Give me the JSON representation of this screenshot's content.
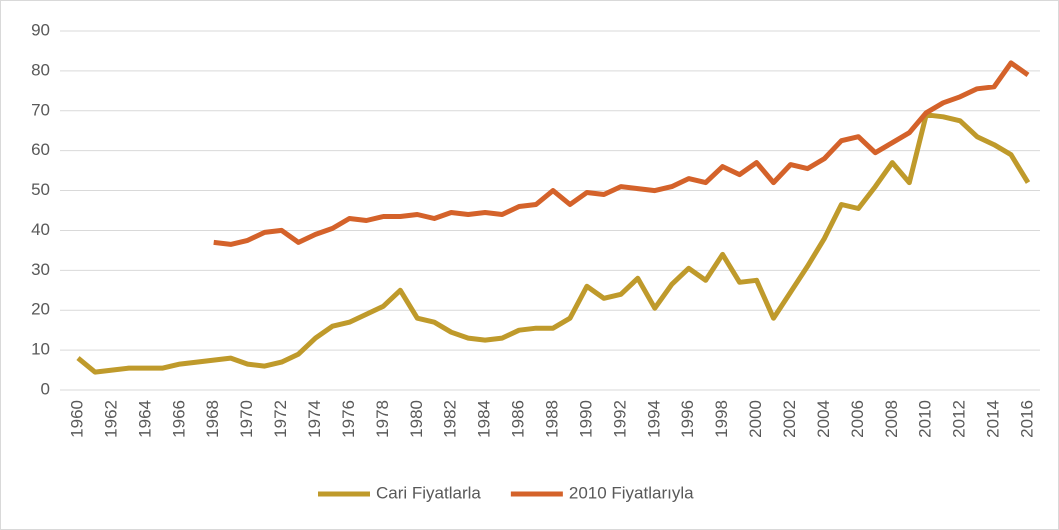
{
  "chart_data": {
    "type": "line",
    "categories": [
      "1960",
      null,
      "1962",
      null,
      "1964",
      null,
      "1966",
      null,
      "1968",
      null,
      "1970",
      null,
      "1972",
      null,
      "1974",
      null,
      "1976",
      null,
      "1978",
      null,
      "1980",
      null,
      "1982",
      null,
      "1984",
      null,
      "1986",
      null,
      "1988",
      null,
      "1990",
      null,
      "1992",
      null,
      "1994",
      null,
      "1996",
      null,
      "1998",
      null,
      "2000",
      null,
      "2002",
      null,
      "2004",
      null,
      "2006",
      null,
      "2008",
      null,
      "2010",
      null,
      "2012",
      null,
      "2014",
      null,
      "2016"
    ],
    "series": [
      {
        "name": "Cari Fiyatlarla",
        "color": "#bf9a2b",
        "values": [
          8,
          4.5,
          5,
          5.5,
          5.5,
          5.5,
          6.5,
          7,
          7.5,
          8,
          6.5,
          6,
          7,
          9,
          13,
          16,
          17,
          19,
          21,
          25,
          18,
          17,
          14.5,
          13,
          12.5,
          13,
          15,
          15.5,
          15.5,
          18,
          26,
          23,
          24,
          28,
          20.5,
          26.5,
          30.5,
          27.5,
          34,
          27,
          27.5,
          18,
          24.5,
          31,
          38,
          46.5,
          45.5,
          51,
          57,
          52,
          69,
          68.5,
          67.5,
          63.5,
          61.5,
          59,
          52
        ]
      },
      {
        "name": "2010 Fiyatlarıyla",
        "color": "#d4622a",
        "values": [
          null,
          null,
          null,
          null,
          null,
          null,
          null,
          null,
          37,
          36.5,
          37.5,
          39.5,
          40,
          37,
          39,
          40.5,
          43,
          42.5,
          43.5,
          43.5,
          44,
          43,
          44.5,
          44,
          44.5,
          44,
          46,
          46.5,
          50,
          46.5,
          49.5,
          49,
          51,
          50.5,
          50,
          51,
          53,
          52,
          56,
          54,
          57,
          52,
          56.5,
          55.5,
          58,
          62.5,
          63.5,
          59.5,
          62,
          64.5,
          69.5,
          72,
          73.5,
          75.5,
          76,
          82,
          79
        ]
      }
    ],
    "ylim": [
      0,
      90
    ],
    "yticks": [
      0,
      10,
      20,
      30,
      40,
      50,
      60,
      70,
      80,
      90
    ],
    "grid": true,
    "legend": "bottom"
  }
}
